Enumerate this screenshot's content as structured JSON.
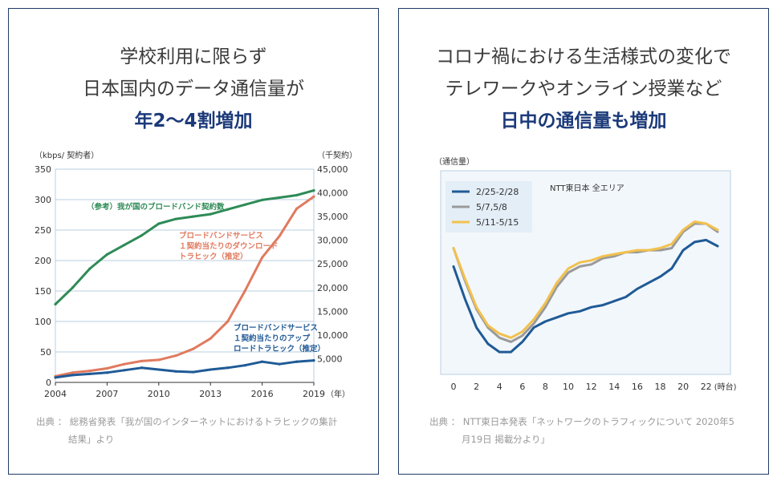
{
  "left_panel": {
    "heading": [
      "学校利用に限らず",
      "日本国内のデータ通信量が",
      "年2〜4割増加"
    ],
    "source": [
      "出典 ： 総務省発表「我が国のインターネットにおけるトラヒックの集計",
      "結果」より"
    ]
  },
  "right_panel": {
    "heading": [
      "コロナ禍における生活様式の変化で",
      "テレワークやオンライン授業など",
      "日中の通信量も増加"
    ],
    "source": [
      "出典 ： NTT東日本発表「ネットワークのトラフィックについて 2020年5",
      "月19日 掲載分より」"
    ]
  },
  "colors": {
    "navy": "#1f3a68",
    "heading_emph": "#1c3a7a",
    "green": "#2e8b57",
    "orange": "#e07a5f",
    "blue": "#1f5a96",
    "gray": "#9a9a9a",
    "yellow": "#f2c14e",
    "legend_bg": "#e4eef7",
    "plot_bg": "#f2f7fb",
    "grid": "#b9cfe0"
  },
  "chart_data": [
    {
      "type": "line",
      "ylabel": "（kbps/ 契約者）",
      "y2label": "（千契約）",
      "xunit": "（年）",
      "x": [
        2004,
        2005,
        2006,
        2007,
        2008,
        2009,
        2010,
        2011,
        2012,
        2013,
        2014,
        2015,
        2016,
        2017,
        2018,
        2019
      ],
      "xticks": [
        2004,
        2007,
        2010,
        2013,
        2016,
        2019
      ],
      "ylim": [
        0,
        350
      ],
      "yticks": [
        0,
        50,
        100,
        150,
        200,
        250,
        300,
        350
      ],
      "y2lim": [
        0,
        45000
      ],
      "y2ticks": [
        5000,
        10000,
        15000,
        20000,
        25000,
        30000,
        35000,
        40000,
        45000
      ],
      "y2ticklabels": [
        "5,000",
        "10,000",
        "15,000",
        "20,000",
        "25,000",
        "30,000",
        "35,000",
        "40,000",
        "45,000"
      ],
      "series": [
        {
          "name": "（参考）我が国のブロードバンド契約数",
          "axis": "right",
          "color_key": "green",
          "values": [
            16500,
            20000,
            24000,
            27000,
            29000,
            31000,
            33500,
            34500,
            35000,
            35500,
            36500,
            37500,
            38500,
            39000,
            39500,
            40500
          ]
        },
        {
          "name": "ブロードバンドサービス 1契約当たりのダウンロード トラヒック（推定）",
          "axis": "left",
          "color_key": "orange",
          "values": [
            10,
            16,
            19,
            23,
            30,
            35,
            37,
            44,
            55,
            72,
            100,
            150,
            205,
            240,
            285,
            305
          ]
        },
        {
          "name": "ブロードバンドサービス 1契約当たりのアップ ロードトラヒック（推定）",
          "axis": "left",
          "color_key": "blue",
          "values": [
            8,
            12,
            14,
            16,
            20,
            24,
            21,
            18,
            17,
            21,
            24,
            28,
            34,
            30,
            34,
            36
          ]
        }
      ],
      "annotations": [
        [
          "（参考）我が国のブロードバンド契約数"
        ],
        [
          "ブロードバンドサービス",
          "１契約当たりのダウンロード",
          "トラヒック（推定）"
        ],
        [
          "ブロードバンドサービス",
          "１契約当たりのアップ",
          "ロードトラヒック（推定）"
        ]
      ]
    },
    {
      "type": "line",
      "ylabel": "（通信量）",
      "xunit": "(時台)",
      "note": "NTT東日本 全エリア",
      "x": [
        0,
        1,
        2,
        3,
        4,
        5,
        6,
        7,
        8,
        9,
        10,
        11,
        12,
        13,
        14,
        15,
        16,
        17,
        18,
        19,
        20,
        21,
        22,
        23
      ],
      "xticks": [
        0,
        2,
        4,
        6,
        8,
        10,
        12,
        14,
        16,
        18,
        20,
        22
      ],
      "ylim": [
        0,
        100
      ],
      "legend_position": "top-left",
      "series": [
        {
          "name": "2/25-2/28",
          "color_key": "blue",
          "values": [
            53,
            37,
            23,
            15,
            11,
            11,
            16,
            23,
            26,
            28,
            30,
            31,
            33,
            34,
            36,
            38,
            42,
            45,
            48,
            52,
            61,
            65,
            66,
            63
          ]
        },
        {
          "name": "5/7,5/8",
          "color_key": "gray",
          "values": [
            62,
            46,
            32,
            23,
            18,
            16,
            19,
            25,
            33,
            43,
            50,
            53,
            54,
            57,
            58,
            60,
            60,
            61,
            61,
            62,
            70,
            74,
            74,
            70
          ]
        },
        {
          "name": "5/11-5/15",
          "color_key": "yellow",
          "values": [
            62,
            47,
            33,
            24,
            20,
            18,
            21,
            27,
            35,
            45,
            52,
            55,
            56,
            58,
            59,
            60,
            61,
            61,
            62,
            64,
            71,
            75,
            74,
            71
          ]
        }
      ]
    }
  ]
}
